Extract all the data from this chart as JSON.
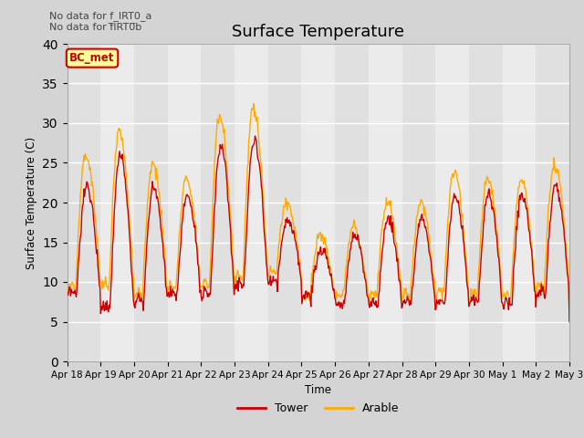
{
  "title": "Surface Temperature",
  "ylabel": "Surface Temperature (C)",
  "xlabel": "Time",
  "ylim": [
    0,
    40
  ],
  "yticks": [
    0,
    5,
    10,
    15,
    20,
    25,
    30,
    35,
    40
  ],
  "fig_bg": "#d4d4d4",
  "plot_bg": "#e8e8e8",
  "plot_bg_alt": "#dcdcdc",
  "tower_color": "#cc0000",
  "arable_color": "#ffaa00",
  "title_fontsize": 13,
  "annotation_text": "No data for f_IRT0_a\nNo data for f̅IRT0̅b",
  "bc_met_label": "BC_met",
  "bc_met_box_color": "#ffff99",
  "bc_met_box_edge": "#cc0000",
  "legend_entries": [
    "Tower",
    "Arable"
  ],
  "x_tick_labels": [
    "Apr 18",
    "Apr 19",
    "Apr 20",
    "Apr 21",
    "Apr 22",
    "Apr 23",
    "Apr 24",
    "Apr 25",
    "Apr 26",
    "Apr 27",
    "Apr 28",
    "Apr 29",
    "Apr 30",
    "May 1",
    "May 2",
    "May 3"
  ],
  "n_days": 15,
  "peak_tower": [
    22,
    26,
    22,
    21,
    27,
    28,
    18,
    14,
    16,
    18,
    18,
    21,
    21,
    21,
    22,
    21
  ],
  "peak_arable": [
    26,
    29,
    25,
    23,
    31,
    32,
    20,
    16,
    17,
    20,
    20,
    24,
    23,
    23,
    25,
    25
  ],
  "min_tower": [
    8,
    6,
    7,
    8,
    8,
    9,
    10,
    8,
    7,
    7,
    7,
    7,
    7,
    7,
    8,
    9
  ],
  "min_arable": [
    9,
    9,
    8,
    9,
    9,
    10,
    11,
    8,
    8,
    8,
    8,
    8,
    8,
    8,
    9,
    10
  ]
}
